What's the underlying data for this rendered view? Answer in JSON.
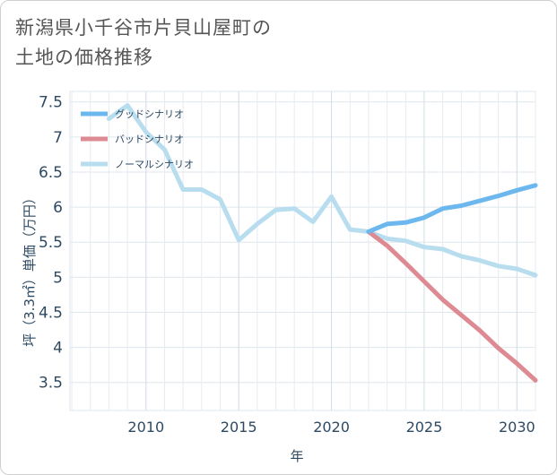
{
  "title_lines": [
    "新潟県小千谷市片貝山屋町の",
    "土地の価格推移"
  ],
  "chart_data": {
    "type": "line",
    "title": "新潟県小千谷市片貝山屋町の土地の価格推移",
    "xlabel": "年",
    "ylabel": "坪（3.3㎡）単価（万円）",
    "xlim": [
      2005.9,
      2031
    ],
    "ylim": [
      3.1,
      7.65
    ],
    "xticks": [
      2010,
      2015,
      2020,
      2025,
      2030
    ],
    "yticks": [
      3.5,
      4,
      4.5,
      5,
      5.5,
      6,
      6.5,
      7,
      7.5
    ],
    "ytick_labels": [
      "3.5",
      "4",
      "4.5",
      "5",
      "5.5",
      "6",
      "6.5",
      "7",
      "7.5"
    ],
    "grid": true,
    "legend_position": "top-left",
    "series": [
      {
        "name": "グッドシナリオ",
        "color": "#6cb8ee",
        "x": [
          2022,
          2023,
          2024,
          2025,
          2026,
          2027,
          2028,
          2029,
          2030,
          2031
        ],
        "y": [
          5.65,
          5.76,
          5.78,
          5.85,
          5.98,
          6.02,
          6.09,
          6.16,
          6.24,
          6.31
        ]
      },
      {
        "name": "バッドシナリオ",
        "color": "#dd8a93",
        "x": [
          2022,
          2023,
          2024,
          2025,
          2026,
          2027,
          2028,
          2029,
          2030,
          2031
        ],
        "y": [
          5.65,
          5.45,
          5.2,
          4.94,
          4.68,
          4.46,
          4.24,
          3.99,
          3.77,
          3.53
        ]
      },
      {
        "name": "ノーマルシナリオ",
        "color": "#b7ddee",
        "x": [
          2008,
          2009,
          2010,
          2011,
          2012,
          2013,
          2014,
          2015,
          2016,
          2017,
          2018,
          2019,
          2020,
          2021,
          2022,
          2023,
          2024,
          2025,
          2026,
          2027,
          2028,
          2029,
          2030,
          2031
        ],
        "y": [
          7.26,
          7.45,
          7.07,
          6.82,
          6.25,
          6.25,
          6.11,
          5.53,
          5.76,
          5.96,
          5.98,
          5.79,
          6.15,
          5.68,
          5.65,
          5.55,
          5.52,
          5.43,
          5.4,
          5.3,
          5.24,
          5.16,
          5.12,
          5.03
        ]
      }
    ]
  }
}
